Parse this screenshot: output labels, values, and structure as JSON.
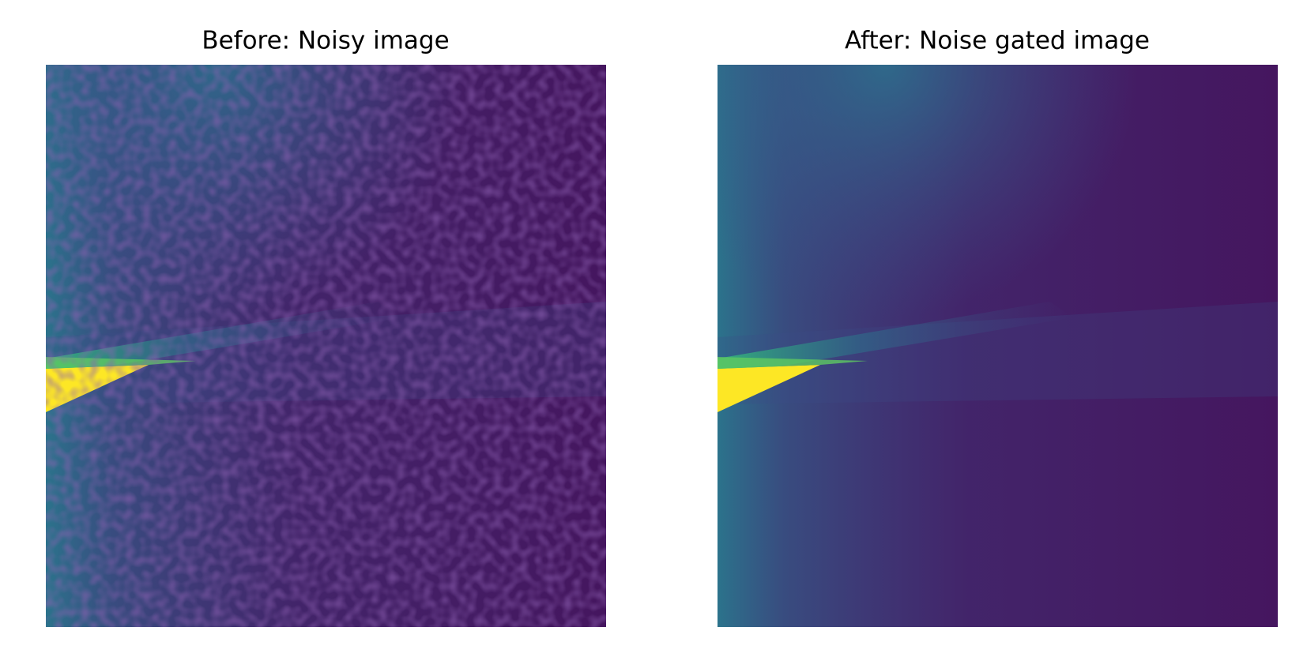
{
  "panels": [
    {
      "title": "Before: Noisy image"
    },
    {
      "title": "After: Noise gated image"
    }
  ]
}
